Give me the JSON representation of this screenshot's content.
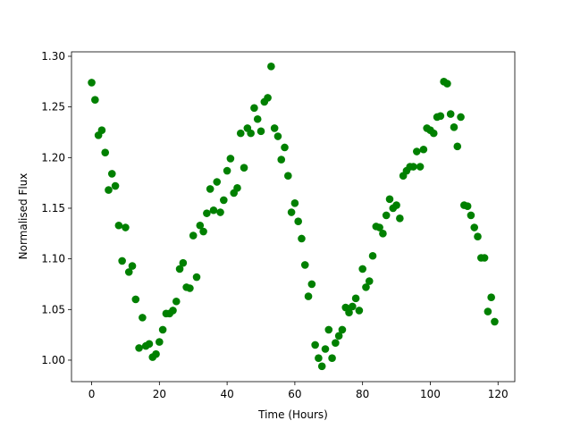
{
  "chart_data": {
    "type": "scatter",
    "x_label": "Time (Hours)",
    "y_label": "Normalised Flux",
    "series": [
      {
        "color": "#008000",
        "x": [
          0,
          1,
          2,
          3,
          4,
          5,
          6,
          7,
          8,
          9,
          10,
          11,
          12,
          13,
          14,
          15,
          16,
          17,
          18,
          19,
          20,
          21,
          22,
          23,
          24,
          25,
          26,
          27,
          28,
          29,
          30,
          31,
          32,
          33,
          34,
          35,
          36,
          37,
          38,
          39,
          40,
          41,
          42,
          43,
          44,
          45,
          46,
          47,
          48,
          49,
          50,
          51,
          52,
          53,
          54,
          55,
          56,
          57,
          58,
          59,
          60,
          61,
          62,
          63,
          64,
          65,
          66,
          67,
          68,
          69,
          70,
          71,
          72,
          73,
          74,
          75,
          76,
          77,
          78,
          79,
          80,
          81,
          82,
          83,
          84,
          85,
          86,
          87,
          88,
          89,
          90,
          91,
          92,
          93,
          94,
          95,
          96,
          97,
          98,
          99,
          100,
          101,
          102,
          103,
          104,
          105,
          106,
          107,
          108,
          109,
          110,
          111,
          112,
          113,
          114,
          115,
          116,
          117,
          118,
          119
        ],
        "values": [
          1.274,
          1.257,
          1.222,
          1.227,
          1.205,
          1.168,
          1.184,
          1.172,
          1.133,
          1.098,
          1.131,
          1.087,
          1.093,
          1.06,
          1.012,
          1.042,
          1.014,
          1.016,
          1.003,
          1.006,
          1.018,
          1.03,
          1.046,
          1.046,
          1.049,
          1.058,
          1.09,
          1.096,
          1.072,
          1.071,
          1.123,
          1.082,
          1.133,
          1.127,
          1.145,
          1.169,
          1.148,
          1.176,
          1.146,
          1.158,
          1.187,
          1.199,
          1.165,
          1.17,
          1.224,
          1.19,
          1.229,
          1.224,
          1.249,
          1.238,
          1.226,
          1.255,
          1.259,
          1.29,
          1.229,
          1.221,
          1.198,
          1.21,
          1.182,
          1.146,
          1.155,
          1.137,
          1.12,
          1.094,
          1.063,
          1.075,
          1.015,
          1.002,
          0.994,
          1.011,
          1.03,
          1.002,
          1.017,
          1.024,
          1.03,
          1.052,
          1.047,
          1.053,
          1.061,
          1.049,
          1.09,
          1.072,
          1.078,
          1.103,
          1.132,
          1.131,
          1.125,
          1.143,
          1.159,
          1.15,
          1.153,
          1.14,
          1.182,
          1.187,
          1.191,
          1.191,
          1.206,
          1.191,
          1.208,
          1.229,
          1.227,
          1.224,
          1.24,
          1.241,
          1.275,
          1.273,
          1.243,
          1.23,
          1.211,
          1.24,
          1.153,
          1.152,
          1.143,
          1.131,
          1.122,
          1.101,
          1.101,
          1.048,
          1.062,
          1.038
        ]
      }
    ],
    "xlim": [
      -5.95,
      124.95
    ],
    "ylim": [
      0.9788,
      1.3044
    ],
    "xticks": [
      0,
      20,
      40,
      60,
      80,
      100,
      120
    ],
    "yticks": [
      {
        "value": 1.0,
        "label": "1.00"
      },
      {
        "value": 1.05,
        "label": "1.05"
      },
      {
        "value": 1.1,
        "label": "1.10"
      },
      {
        "value": 1.15,
        "label": "1.15"
      },
      {
        "value": 1.2,
        "label": "1.20"
      },
      {
        "value": 1.25,
        "label": "1.25"
      },
      {
        "value": 1.3,
        "label": "1.30"
      }
    ]
  }
}
